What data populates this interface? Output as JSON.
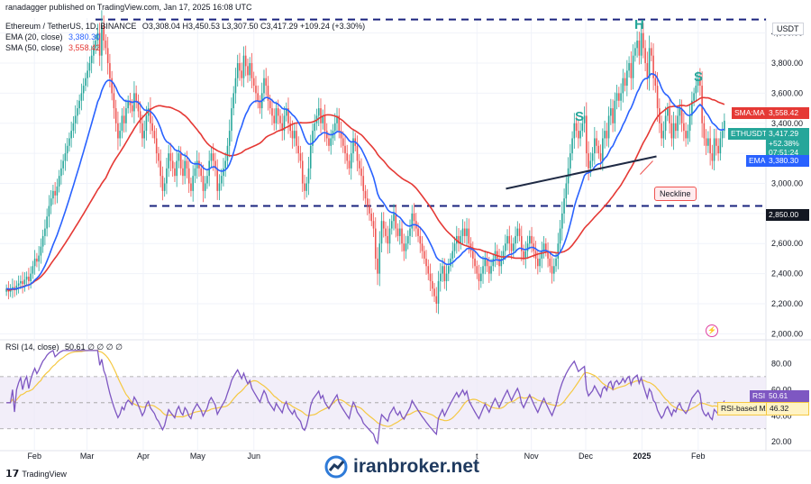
{
  "header": {
    "publish_line": "ranadagger published on TradingView.com, Jan 17, 2025 16:08 UTC",
    "symbol": "Ethereum / TetherUS, 1D, BINANCE",
    "ohlc": "O3,308.04  H3,450.53  L3,307.50  C3,417.29  +109.24 (+3.30%)",
    "ema_label": "EMA (20, close)",
    "ema_value": "3,380.30",
    "sma_label": "SMA (50, close)",
    "sma_value": "3,558.42",
    "currency": "USDT"
  },
  "annotations": {
    "left_shoulder": "S",
    "head": "H",
    "right_shoulder": "S",
    "neckline": "Neckline"
  },
  "price_tags": {
    "sma": {
      "label": "SMA:MA",
      "value": "3,558.42"
    },
    "last": {
      "label": "ETHUSDT",
      "value": "3,417.29",
      "change": "+52.38%",
      "countdown": "07:51:24"
    },
    "ema": {
      "label": "EMA",
      "value": "3,380.30"
    },
    "support": "2,850.00"
  },
  "rsi": {
    "label": "RSI (14, close)",
    "values_text": "50.61  ∅  ∅  ∅  ∅",
    "tag_rsi": {
      "label": "RSI",
      "value": "50.61"
    },
    "tag_ma": {
      "label": "RSI-based MA",
      "value": "46.32"
    }
  },
  "footer": {
    "tv_logo": "TradingView",
    "watermark": "iranbroker.net"
  },
  "colors": {
    "up": "#26a69a",
    "down": "#ef5350",
    "ema": "#2962ff",
    "sma": "#e53935",
    "rsi": "#7e57c2",
    "rsi_ma": "#f5c842",
    "level": "#1a237e"
  },
  "chart_data": [
    {
      "type": "candlestick",
      "title": "Ethereum / TetherUS, 1D, BINANCE",
      "y_axis_ticks": [
        2000,
        2200,
        2400,
        2600,
        2800,
        3000,
        3200,
        3400,
        3600,
        3800,
        4000
      ],
      "y_axis_labels": [
        "2,000.00",
        "2,200.00",
        "2,400.00",
        "2,600.00",
        "2,800.00",
        "3,000.00",
        "3,200.00",
        "3,400.00",
        "3,600.00",
        "3,800.00",
        "4,000.00"
      ],
      "ylim": [
        1990,
        4100
      ],
      "x_axis_labels": [
        "Feb",
        "Mar",
        "Apr",
        "May",
        "Jun",
        "t",
        "Nov",
        "Dec",
        "2025",
        "Feb"
      ],
      "x_axis_label_days": [
        16,
        45,
        76,
        106,
        137,
        260,
        290,
        320,
        351,
        382
      ],
      "x_axis_range_days": [
        0,
        397
      ],
      "levels": [
        {
          "name": "resistance",
          "value": 4090,
          "style": "dashed"
        },
        {
          "name": "support",
          "value": 2850,
          "style": "dashed"
        }
      ],
      "neckline": {
        "from": {
          "day": 276,
          "value": 2965
        },
        "to": {
          "day": 359,
          "value": 3180
        }
      },
      "closes": [
        2300,
        2280,
        2295,
        2310,
        2290,
        2320,
        2335,
        2350,
        2330,
        2360,
        2380,
        2350,
        2400,
        2450,
        2500,
        2480,
        2520,
        2580,
        2650,
        2700,
        2780,
        2850,
        2900,
        2950,
        2920,
        2980,
        3050,
        3100,
        3150,
        3200,
        3250,
        3300,
        3350,
        3400,
        3450,
        3500,
        3550,
        3600,
        3650,
        3700,
        3750,
        3800,
        3850,
        3900,
        3950,
        4000,
        3850,
        4050,
        3950,
        3900,
        3800,
        3700,
        3600,
        3500,
        3400,
        3300,
        3350,
        3450,
        3400,
        3500,
        3550,
        3520,
        3480,
        3600,
        3550,
        3480,
        3400,
        3300,
        3350,
        3450,
        3500,
        3400,
        3350,
        3300,
        3200,
        3150,
        3050,
        2950,
        3000,
        3100,
        3200,
        3150,
        3100,
        3050,
        3150,
        3200,
        3100,
        3050,
        3150,
        3100,
        3000,
        2950,
        3050,
        3100,
        3150,
        3100,
        3050,
        2950,
        3000,
        3050,
        3150,
        3200,
        3150,
        3100,
        2950,
        3000,
        3050,
        3100,
        3150,
        3250,
        3350,
        3500,
        3600,
        3700,
        3800,
        3750,
        3700,
        3850,
        3780,
        3720,
        3800,
        3700,
        3650,
        3600,
        3550,
        3500,
        3600,
        3700,
        3650,
        3550,
        3500,
        3450,
        3400,
        3500,
        3450,
        3400,
        3350,
        3450,
        3500,
        3400,
        3350,
        3300,
        3350,
        3250,
        3200,
        3150,
        3000,
        2950,
        3000,
        3100,
        3250,
        3350,
        3400,
        3450,
        3500,
        3400,
        3450,
        3350,
        3300,
        3250,
        3300,
        3350,
        3400,
        3450,
        3350,
        3300,
        3250,
        3200,
        3150,
        3100,
        3200,
        3300,
        3250,
        3150,
        3100,
        3050,
        2950,
        2900,
        2850,
        2800,
        2750,
        2700,
        2500,
        2400,
        2600,
        2750,
        2700,
        2650,
        2600,
        2700,
        2750,
        2800,
        2700,
        2650,
        2700,
        2600,
        2550,
        2600,
        2650,
        2700,
        2800,
        2750,
        2700,
        2650,
        2600,
        2550,
        2500,
        2450,
        2400,
        2350,
        2300,
        2250,
        2200,
        2350,
        2400,
        2450,
        2350,
        2400,
        2450,
        2500,
        2550,
        2600,
        2650,
        2600,
        2650,
        2700,
        2650,
        2700,
        2600,
        2550,
        2500,
        2450,
        2400,
        2350,
        2400,
        2450,
        2500,
        2450,
        2400,
        2450,
        2500,
        2550,
        2500,
        2450,
        2500,
        2550,
        2600,
        2650,
        2600,
        2550,
        2600,
        2650,
        2700,
        2650,
        2550,
        2500,
        2550,
        2600,
        2650,
        2600,
        2550,
        2500,
        2450,
        2500,
        2550,
        2600,
        2550,
        2500,
        2450,
        2400,
        2450,
        2500,
        2600,
        2700,
        2800,
        2900,
        3000,
        3100,
        3200,
        3300,
        3400,
        3350,
        3300,
        3350,
        3400,
        3450,
        3200,
        3100,
        3150,
        3200,
        3300,
        3250,
        3200,
        3150,
        3300,
        3350,
        3300,
        3450,
        3500,
        3400,
        3550,
        3600,
        3550,
        3600,
        3700,
        3650,
        3750,
        3800,
        3700,
        3850,
        3900,
        3950,
        3850,
        4000,
        3900,
        3800,
        3700,
        3900,
        3850,
        3700,
        3650,
        3500,
        3400,
        3300,
        3350,
        3450,
        3500,
        3400,
        3300,
        3400,
        3350,
        3450,
        3500,
        3400,
        3350,
        3300,
        3350,
        3450,
        3550,
        3600,
        3650,
        3700,
        3650,
        3400,
        3300,
        3250,
        3300,
        3200,
        3150,
        3300,
        3250,
        3200,
        3300,
        3350,
        3417
      ],
      "series": [
        {
          "name": "EMA (20, close)",
          "last": 3380.3
        },
        {
          "name": "SMA (50, close)",
          "last": 3558.42
        }
      ]
    },
    {
      "type": "line",
      "title": "RSI (14, close)",
      "y_axis_ticks": [
        20,
        40,
        60,
        80
      ],
      "y_axis_labels": [
        "20.00",
        "40.00",
        "60.00",
        "80.00"
      ],
      "ylim": [
        16,
        92
      ],
      "bands": {
        "upper": 70,
        "middle": 50,
        "lower": 30
      },
      "series": [
        {
          "name": "RSI",
          "last": 50.61
        },
        {
          "name": "RSI-based MA",
          "last": 46.32
        }
      ]
    }
  ]
}
